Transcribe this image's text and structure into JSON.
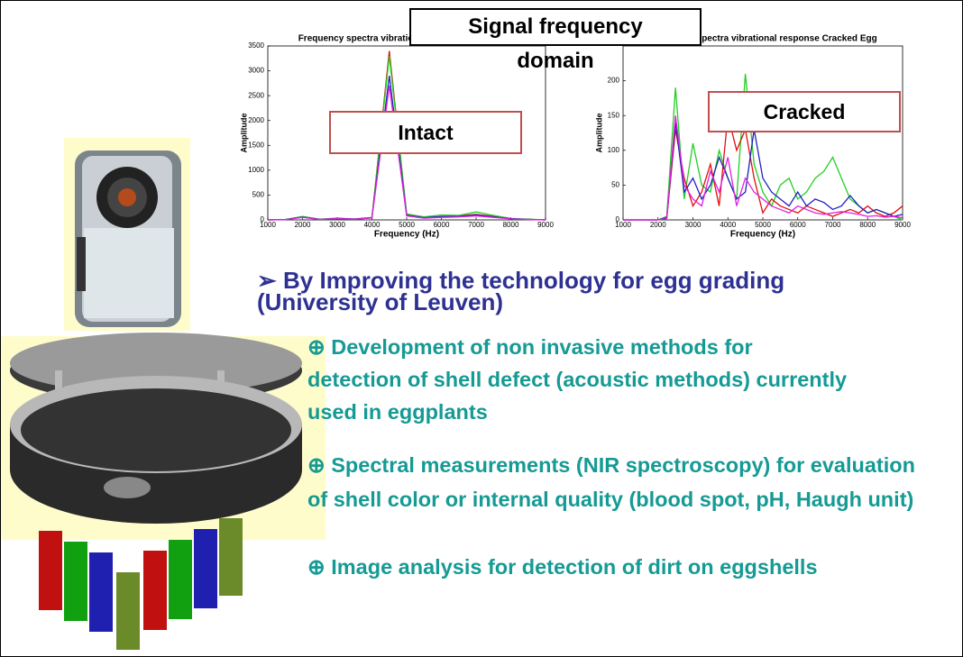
{
  "chart_data": [
    {
      "type": "line",
      "title": "Frequency spectra vibrational response Intact Egg",
      "xlabel": "Frequency (Hz)",
      "ylabel": "Amplitude",
      "xlim": [
        1000,
        9000
      ],
      "ylim": [
        0,
        3500
      ],
      "xticks": [
        1000,
        2000,
        3000,
        4000,
        5000,
        6000,
        7000,
        8000,
        9000
      ],
      "yticks": [
        0,
        500,
        1000,
        1500,
        2000,
        2500,
        3000,
        3500
      ],
      "x": [
        1000,
        1500,
        2000,
        2500,
        3000,
        3500,
        4000,
        4500,
        5000,
        5500,
        6000,
        6500,
        7000,
        7500,
        8000,
        8500,
        9000
      ],
      "series": [
        {
          "color": "#e01010",
          "values": [
            0,
            5,
            60,
            10,
            30,
            15,
            40,
            3400,
            100,
            40,
            60,
            80,
            110,
            70,
            20,
            10,
            0
          ]
        },
        {
          "color": "#20d020",
          "values": [
            0,
            8,
            70,
            15,
            35,
            20,
            50,
            3300,
            120,
            60,
            100,
            90,
            160,
            90,
            30,
            15,
            0
          ]
        },
        {
          "color": "#2020c0",
          "values": [
            0,
            6,
            55,
            12,
            28,
            18,
            45,
            2900,
            90,
            45,
            70,
            70,
            100,
            60,
            25,
            12,
            0
          ]
        },
        {
          "color": "#e020e0",
          "values": [
            0,
            4,
            50,
            10,
            25,
            15,
            40,
            2700,
            80,
            35,
            50,
            60,
            80,
            50,
            20,
            8,
            0
          ]
        }
      ]
    },
    {
      "type": "line",
      "title": "Frequency spectra vibrational response Cracked Egg",
      "xlabel": "Frequency (Hz)",
      "ylabel": "Amplitude",
      "xlim": [
        1000,
        9000
      ],
      "ylim": [
        0,
        250
      ],
      "xticks": [
        1000,
        2000,
        3000,
        4000,
        5000,
        6000,
        7000,
        8000,
        9000
      ],
      "yticks": [
        0,
        50,
        100,
        150,
        200
      ],
      "x": [
        1000,
        1250,
        1500,
        1750,
        2000,
        2250,
        2500,
        2750,
        3000,
        3250,
        3500,
        3750,
        4000,
        4250,
        4500,
        4750,
        5000,
        5250,
        5500,
        5750,
        6000,
        6250,
        6500,
        6750,
        7000,
        7250,
        7500,
        7750,
        8000,
        8250,
        8500,
        8750,
        9000
      ],
      "series": [
        {
          "color": "#20d020",
          "values": [
            0,
            0,
            0,
            0,
            0,
            5,
            190,
            30,
            110,
            50,
            40,
            100,
            60,
            30,
            210,
            80,
            40,
            20,
            50,
            60,
            30,
            40,
            60,
            70,
            90,
            60,
            30,
            20,
            10,
            15,
            10,
            5,
            0
          ]
        },
        {
          "color": "#e01010",
          "values": [
            0,
            0,
            0,
            0,
            0,
            2,
            130,
            60,
            20,
            40,
            80,
            20,
            150,
            100,
            130,
            60,
            10,
            30,
            20,
            15,
            10,
            20,
            15,
            10,
            5,
            10,
            15,
            10,
            20,
            10,
            5,
            10,
            20
          ]
        },
        {
          "color": "#2020c0",
          "values": [
            0,
            0,
            0,
            0,
            0,
            3,
            140,
            40,
            60,
            30,
            50,
            90,
            60,
            30,
            40,
            130,
            60,
            40,
            30,
            20,
            40,
            20,
            30,
            25,
            15,
            20,
            35,
            20,
            10,
            15,
            10,
            5,
            8
          ]
        },
        {
          "color": "#e020e0",
          "values": [
            0,
            0,
            0,
            0,
            0,
            2,
            150,
            50,
            30,
            20,
            70,
            40,
            90,
            20,
            60,
            40,
            30,
            20,
            15,
            10,
            20,
            15,
            10,
            8,
            10,
            12,
            10,
            8,
            5,
            6,
            4,
            5,
            3
          ]
        }
      ]
    }
  ],
  "callouts": {
    "signal": "Signal frequency domain",
    "intact": "Intact",
    "cracked": "Cracked"
  },
  "heading": "➢ By Improving the technology for egg grading (University of Leuven)",
  "bullets": [
    "⊕ Development of non invasive methods for detection of shell defect (acoustic methods) currently used in eggplants",
    "⊕ Spectral measurements (NIR spectroscopy) for evaluation of shell color or internal quality (blood spot, pH, Haugh unit)",
    "⊕ Image analysis for detection of dirt on eggshells"
  ]
}
